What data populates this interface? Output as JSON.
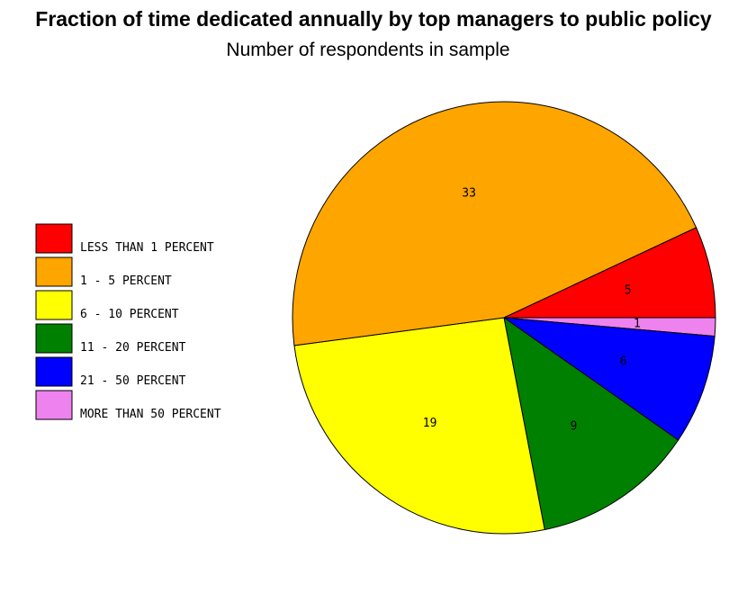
{
  "chart_data": {
    "type": "pie",
    "title": "Fraction of time dedicated annually by top managers to public policy",
    "subtitle": "Number of respondents in sample",
    "slices": [
      {
        "label": "LESS THAN 1 PERCENT",
        "value": 5,
        "color": "#ff0000"
      },
      {
        "label": "1 - 5 PERCENT",
        "value": 33,
        "color": "#ffa500"
      },
      {
        "label": "6 - 10 PERCENT",
        "value": 19,
        "color": "#ffff00"
      },
      {
        "label": "11 - 20 PERCENT",
        "value": 9,
        "color": "#008000"
      },
      {
        "label": "21 - 50 PERCENT",
        "value": 6,
        "color": "#0000ff"
      },
      {
        "label": "MORE THAN 50 PERCENT",
        "value": 1,
        "color": "#ee82ee"
      }
    ],
    "legend_position": "left"
  }
}
